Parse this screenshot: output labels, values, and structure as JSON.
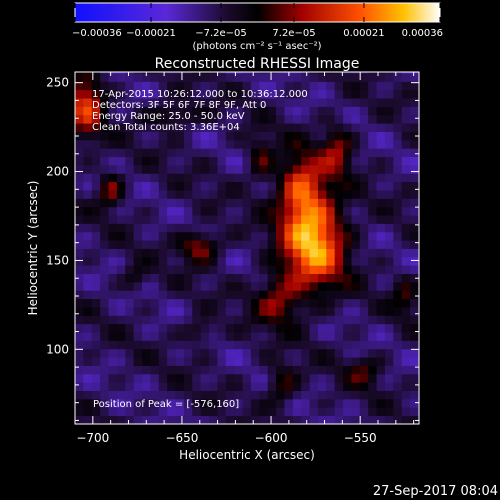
{
  "chart_data": {
    "type": "heatmap",
    "title": "Reconstructed RHESSI Image",
    "xlabel": "Heliocentric X (arcsec)",
    "ylabel": "Heliocentric Y (arcsec)",
    "xlim": [
      -710,
      -517
    ],
    "ylim": [
      58,
      256
    ],
    "x_ticks": [
      -700,
      -650,
      -600,
      -550
    ],
    "y_ticks": [
      100,
      150,
      200,
      250
    ],
    "colorbar": {
      "min": -0.00036,
      "max": 0.00036,
      "tick_values": [
        -0.00036,
        -0.00021,
        -7.2e-05,
        7.2e-05,
        0.00021,
        0.00036
      ],
      "tick_labels": [
        "-0.00036",
        "-0.00021",
        "-7.2e-05",
        "7.2e-05",
        "0.00021",
        "0.00036"
      ],
      "units_label": "(photons cm⁻² s⁻¹ asec⁻²)"
    },
    "annotations": [
      "17-Apr-2015 10:26:12.000 to 10:36:12.000",
      "Detectors: 3F 5F 6F 7F 8F 9F, Att 0",
      "Energy Range: 25.0 - 50.0 keV",
      "Clean    Total counts: 3.36E+04"
    ],
    "peak_label": "Position of Peak = [-576,160]",
    "peak": {
      "x": -576,
      "y": 160
    },
    "sources": [
      {
        "x": -576,
        "y": 160,
        "sx": 12,
        "sy": 18,
        "amp": 0.00036
      },
      {
        "x": -583,
        "y": 190,
        "sx": 9,
        "sy": 14,
        "amp": 0.00024
      },
      {
        "x": -563,
        "y": 212,
        "sx": 6,
        "sy": 10,
        "amp": 0.00016
      },
      {
        "x": -596,
        "y": 128,
        "sx": 9,
        "sy": 10,
        "amp": 0.00016
      },
      {
        "x": -704,
        "y": 238,
        "sx": 7,
        "sy": 14,
        "amp": 0.00022
      },
      {
        "x": -690,
        "y": 190,
        "sx": 5,
        "sy": 7,
        "amp": 0.00016
      },
      {
        "x": -640,
        "y": 158,
        "sx": 8,
        "sy": 6,
        "amp": 0.00018
      },
      {
        "x": -655,
        "y": 232,
        "sx": 10,
        "sy": 5,
        "amp": 0.00012
      },
      {
        "x": -606,
        "y": 207,
        "sx": 5,
        "sy": 9,
        "amp": 0.00012
      },
      {
        "x": -594,
        "y": 80,
        "sx": 6,
        "sy": 8,
        "amp": 0.00013
      },
      {
        "x": -548,
        "y": 88,
        "sx": 7,
        "sy": 6,
        "amp": 0.00011
      },
      {
        "x": -640,
        "y": 110,
        "sx": 6,
        "sy": 5,
        "amp": 0.0001
      },
      {
        "x": -676,
        "y": 140,
        "sx": 5,
        "sy": 5,
        "amp": 9e-05
      },
      {
        "x": -525,
        "y": 130,
        "sx": 5,
        "sy": 8,
        "amp": 0.0001
      }
    ],
    "background_amp": 5e-05
  },
  "footer_date": "27-Sep-2017 08:04"
}
